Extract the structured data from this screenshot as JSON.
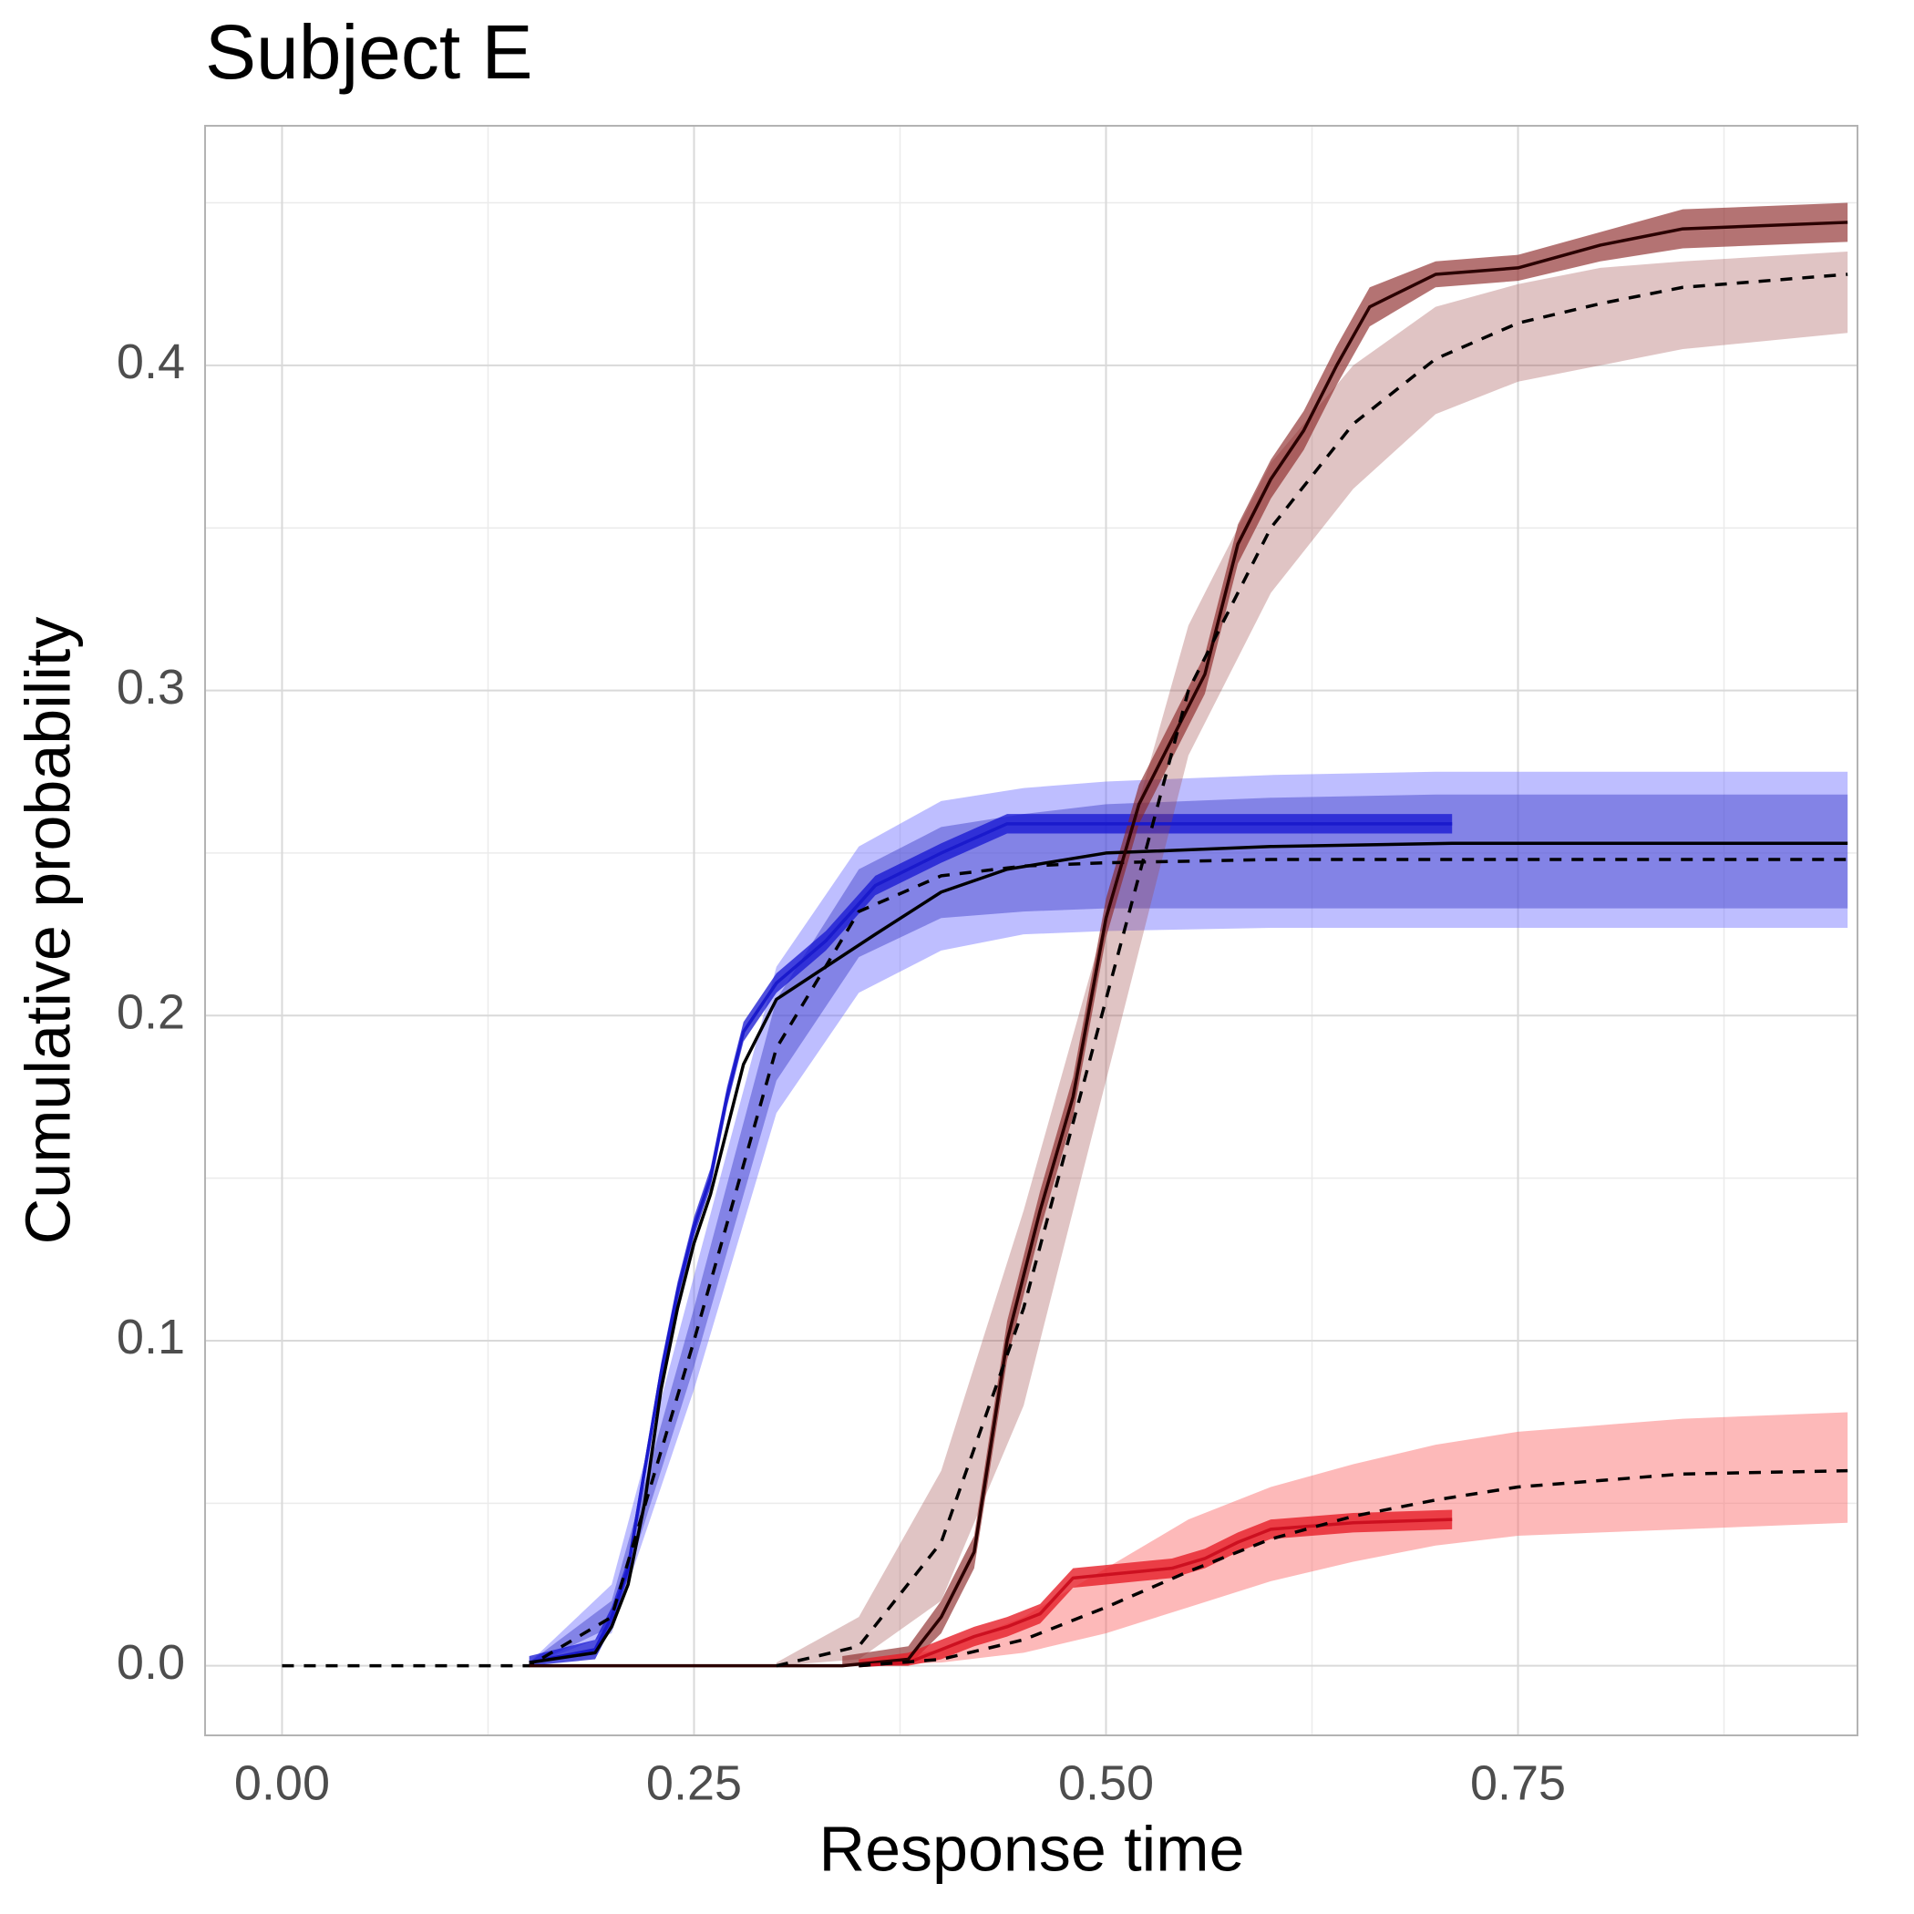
{
  "chart_data": {
    "type": "line",
    "title": "Subject E",
    "xlabel": "Response time",
    "ylabel": "Cumulative probability",
    "xlim": [
      -0.0467,
      0.956
    ],
    "ylim": [
      -0.0214,
      0.4737
    ],
    "xticks": [
      {
        "value": 0,
        "label": "0.00"
      },
      {
        "value": 0.25,
        "label": "0.25"
      },
      {
        "value": 0.5,
        "label": "0.50"
      },
      {
        "value": 0.75,
        "label": "0.75"
      }
    ],
    "yticks": [
      {
        "value": 0,
        "label": "0.0"
      },
      {
        "value": 0.1,
        "label": "0.1"
      },
      {
        "value": 0.2,
        "label": "0.2"
      },
      {
        "value": 0.3,
        "label": "0.3"
      },
      {
        "value": 0.4,
        "label": "0.4"
      }
    ],
    "xminor": [
      0.125,
      0.375,
      0.625,
      0.875
    ],
    "yminor": [
      0.05,
      0.15,
      0.25,
      0.35,
      0.45
    ],
    "grid": true,
    "bands": [
      {
        "color": "rgba(100,100,255,0.42)",
        "x": [
          0.15,
          0.2,
          0.25,
          0.3,
          0.35,
          0.4,
          0.45,
          0.5,
          0.6,
          0.7,
          0.8,
          0.95
        ],
        "upper": [
          0.001,
          0.025,
          0.12,
          0.215,
          0.252,
          0.266,
          0.27,
          0.272,
          0.274,
          0.275,
          0.275,
          0.275
        ],
        "lower": [
          0,
          0.01,
          0.085,
          0.17,
          0.207,
          0.22,
          0.225,
          0.226,
          0.227,
          0.227,
          0.227,
          0.227
        ]
      },
      {
        "color": "rgba(60,60,200,0.45)",
        "x": [
          0.15,
          0.2,
          0.25,
          0.3,
          0.35,
          0.4,
          0.45,
          0.5,
          0.6,
          0.7,
          0.8,
          0.95
        ],
        "upper": [
          0.001,
          0.02,
          0.11,
          0.205,
          0.245,
          0.258,
          0.262,
          0.265,
          0.267,
          0.268,
          0.268,
          0.268
        ],
        "lower": [
          0,
          0.012,
          0.092,
          0.18,
          0.218,
          0.23,
          0.232,
          0.233,
          0.233,
          0.233,
          0.233,
          0.233
        ]
      },
      {
        "color": "rgba(20,20,210,0.75)",
        "x": [
          0.15,
          0.19,
          0.2,
          0.21,
          0.22,
          0.23,
          0.24,
          0.25,
          0.26,
          0.27,
          0.28,
          0.3,
          0.33,
          0.36,
          0.4,
          0.44,
          0.5,
          0.6,
          0.71
        ],
        "upper": [
          0.003,
          0.008,
          0.018,
          0.033,
          0.063,
          0.093,
          0.118,
          0.138,
          0.153,
          0.178,
          0.198,
          0.213,
          0.226,
          0.243,
          0.253,
          0.262,
          0.262,
          0.262,
          0.262
        ],
        "lower": [
          0,
          0.002,
          0.012,
          0.027,
          0.057,
          0.087,
          0.112,
          0.132,
          0.147,
          0.172,
          0.192,
          0.207,
          0.22,
          0.237,
          0.247,
          0.256,
          0.256,
          0.256,
          0.256
        ]
      },
      {
        "color": "rgba(160,70,70,0.32)",
        "x": [
          0.3,
          0.35,
          0.4,
          0.45,
          0.5,
          0.55,
          0.6,
          0.65,
          0.7,
          0.75,
          0.8,
          0.85,
          0.95
        ],
        "upper": [
          0.001,
          0.015,
          0.06,
          0.14,
          0.23,
          0.32,
          0.37,
          0.4,
          0.418,
          0.425,
          0.43,
          0.432,
          0.435
        ],
        "lower": [
          0,
          0.002,
          0.02,
          0.08,
          0.18,
          0.28,
          0.33,
          0.362,
          0.385,
          0.395,
          0.4,
          0.405,
          0.41
        ]
      },
      {
        "color": "rgba(140,40,40,0.65)",
        "x": [
          0.34,
          0.38,
          0.4,
          0.42,
          0.44,
          0.46,
          0.48,
          0.5,
          0.52,
          0.54,
          0.56,
          0.58,
          0.6,
          0.62,
          0.64,
          0.66,
          0.7,
          0.75,
          0.8,
          0.85,
          0.9,
          0.95
        ],
        "upper": [
          0.003,
          0.006,
          0.02,
          0.04,
          0.106,
          0.146,
          0.181,
          0.236,
          0.271,
          0.291,
          0.311,
          0.351,
          0.371,
          0.386,
          0.406,
          0.424,
          0.432,
          0.434,
          0.441,
          0.448,
          0.449,
          0.45
        ],
        "lower": [
          0,
          0,
          0.01,
          0.03,
          0.094,
          0.134,
          0.169,
          0.224,
          0.259,
          0.279,
          0.299,
          0.339,
          0.359,
          0.374,
          0.394,
          0.412,
          0.424,
          0.426,
          0.432,
          0.436,
          0.437,
          0.438
        ]
      },
      {
        "color": "rgba(250,100,100,0.45)",
        "x": [
          0.35,
          0.4,
          0.45,
          0.5,
          0.55,
          0.6,
          0.65,
          0.7,
          0.75,
          0.8,
          0.85,
          0.95
        ],
        "upper": [
          0.001,
          0.005,
          0.015,
          0.03,
          0.045,
          0.055,
          0.062,
          0.068,
          0.072,
          0.074,
          0.076,
          0.078
        ],
        "lower": [
          0,
          0.001,
          0.004,
          0.01,
          0.018,
          0.026,
          0.032,
          0.037,
          0.04,
          0.041,
          0.042,
          0.044
        ]
      },
      {
        "color": "rgba(230,30,40,0.8)",
        "x": [
          0.35,
          0.38,
          0.4,
          0.42,
          0.44,
          0.46,
          0.48,
          0.5,
          0.52,
          0.54,
          0.56,
          0.58,
          0.6,
          0.65,
          0.71
        ],
        "upper": [
          0.002,
          0.004,
          0.008,
          0.012,
          0.015,
          0.019,
          0.03,
          0.031,
          0.032,
          0.033,
          0.036,
          0.041,
          0.045,
          0.047,
          0.048
        ],
        "lower": [
          0,
          0,
          0.002,
          0.006,
          0.009,
          0.013,
          0.024,
          0.025,
          0.026,
          0.027,
          0.03,
          0.035,
          0.039,
          0.041,
          0.042
        ]
      }
    ],
    "series": [
      {
        "color": "#1a1acc",
        "dashed": false,
        "x": [
          0.15,
          0.19,
          0.2,
          0.21,
          0.22,
          0.23,
          0.24,
          0.25,
          0.26,
          0.27,
          0.28,
          0.3,
          0.33,
          0.36,
          0.4,
          0.44,
          0.5,
          0.6,
          0.71
        ],
        "values": [
          0.001,
          0.005,
          0.015,
          0.03,
          0.06,
          0.09,
          0.115,
          0.135,
          0.15,
          0.175,
          0.195,
          0.21,
          0.223,
          0.24,
          0.25,
          0.259,
          0.259,
          0.259,
          0.259
        ]
      },
      {
        "color": "#000000",
        "dashed": false,
        "x": [
          0.15,
          0.19,
          0.2,
          0.21,
          0.22,
          0.23,
          0.24,
          0.25,
          0.26,
          0.27,
          0.28,
          0.3,
          0.33,
          0.36,
          0.4,
          0.44,
          0.5,
          0.6,
          0.71,
          0.95
        ],
        "values": [
          0.001,
          0.004,
          0.012,
          0.025,
          0.05,
          0.085,
          0.11,
          0.13,
          0.145,
          0.165,
          0.185,
          0.205,
          0.215,
          0.225,
          0.238,
          0.245,
          0.25,
          0.252,
          0.253,
          0.253
        ]
      },
      {
        "color": "#000000",
        "dashed": true,
        "x": [
          0,
          0.15,
          0.2,
          0.25,
          0.3,
          0.35,
          0.4,
          0.45,
          0.5,
          0.6,
          0.7,
          0.8,
          0.95
        ],
        "values": [
          0,
          0,
          0.015,
          0.1,
          0.19,
          0.232,
          0.243,
          0.246,
          0.247,
          0.248,
          0.248,
          0.248,
          0.248
        ]
      },
      {
        "color": "#2a0000",
        "dashed": false,
        "x": [
          0.15,
          0.34,
          0.38,
          0.4,
          0.42,
          0.44,
          0.46,
          0.48,
          0.5,
          0.52,
          0.54,
          0.56,
          0.58,
          0.6,
          0.62,
          0.64,
          0.66,
          0.7,
          0.75,
          0.8,
          0.85,
          0.9,
          0.95
        ],
        "values": [
          0,
          0,
          0.002,
          0.015,
          0.035,
          0.1,
          0.14,
          0.175,
          0.23,
          0.265,
          0.285,
          0.305,
          0.345,
          0.365,
          0.38,
          0.4,
          0.418,
          0.428,
          0.43,
          0.437,
          0.442,
          0.443,
          0.444
        ]
      },
      {
        "color": "#000000",
        "dashed": true,
        "x": [
          0.3,
          0.35,
          0.4,
          0.45,
          0.5,
          0.55,
          0.6,
          0.65,
          0.7,
          0.75,
          0.8,
          0.85,
          0.95
        ],
        "values": [
          0,
          0.006,
          0.038,
          0.11,
          0.205,
          0.3,
          0.35,
          0.382,
          0.402,
          0.413,
          0.419,
          0.424,
          0.428
        ]
      },
      {
        "color": "#cc1020",
        "dashed": false,
        "x": [
          0.35,
          0.38,
          0.4,
          0.42,
          0.44,
          0.46,
          0.48,
          0.5,
          0.52,
          0.54,
          0.56,
          0.58,
          0.6,
          0.65,
          0.71
        ],
        "values": [
          0,
          0.001,
          0.005,
          0.009,
          0.012,
          0.016,
          0.027,
          0.028,
          0.029,
          0.03,
          0.033,
          0.038,
          0.042,
          0.044,
          0.045
        ]
      },
      {
        "color": "#000000",
        "dashed": true,
        "x": [
          0.35,
          0.4,
          0.45,
          0.5,
          0.55,
          0.6,
          0.65,
          0.7,
          0.75,
          0.8,
          0.85,
          0.95
        ],
        "values": [
          0,
          0.002,
          0.008,
          0.018,
          0.029,
          0.039,
          0.046,
          0.051,
          0.055,
          0.057,
          0.059,
          0.06
        ]
      }
    ]
  }
}
